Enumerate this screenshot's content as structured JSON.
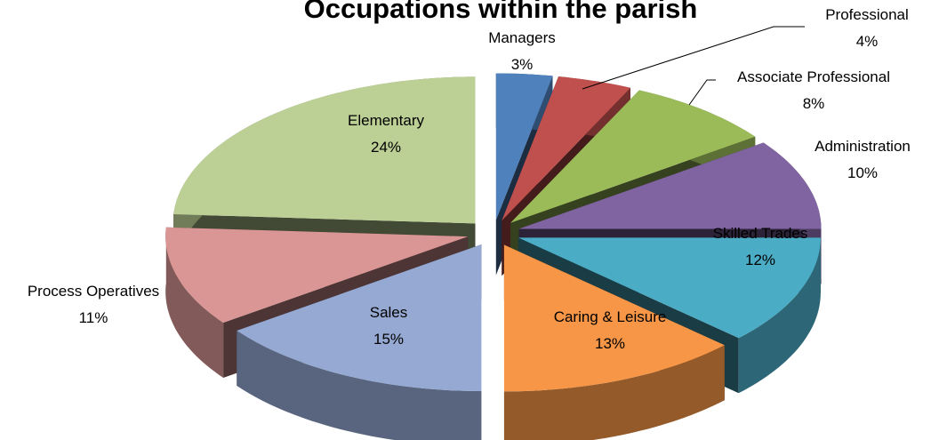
{
  "chart_data": {
    "type": "pie3d",
    "title": "Occupations within the parish",
    "categories": [
      "Managers",
      "Professional",
      "Associate Professional",
      "Administration",
      "Skilled Trades",
      "Caring & Leisure",
      "Sales",
      "Process Operatives",
      "Elementary"
    ],
    "values": [
      3,
      4,
      8,
      10,
      12,
      13,
      15,
      11,
      24
    ],
    "value_labels": [
      "3%",
      "4%",
      "8%",
      "10%",
      "12%",
      "13%",
      "15%",
      "11%",
      "24%"
    ],
    "colors": [
      "#4f81bd",
      "#c0504d",
      "#9bbb59",
      "#8064a2",
      "#4bacc6",
      "#f79646",
      "#95a9d3",
      "#d99694",
      "#bcd095"
    ]
  }
}
